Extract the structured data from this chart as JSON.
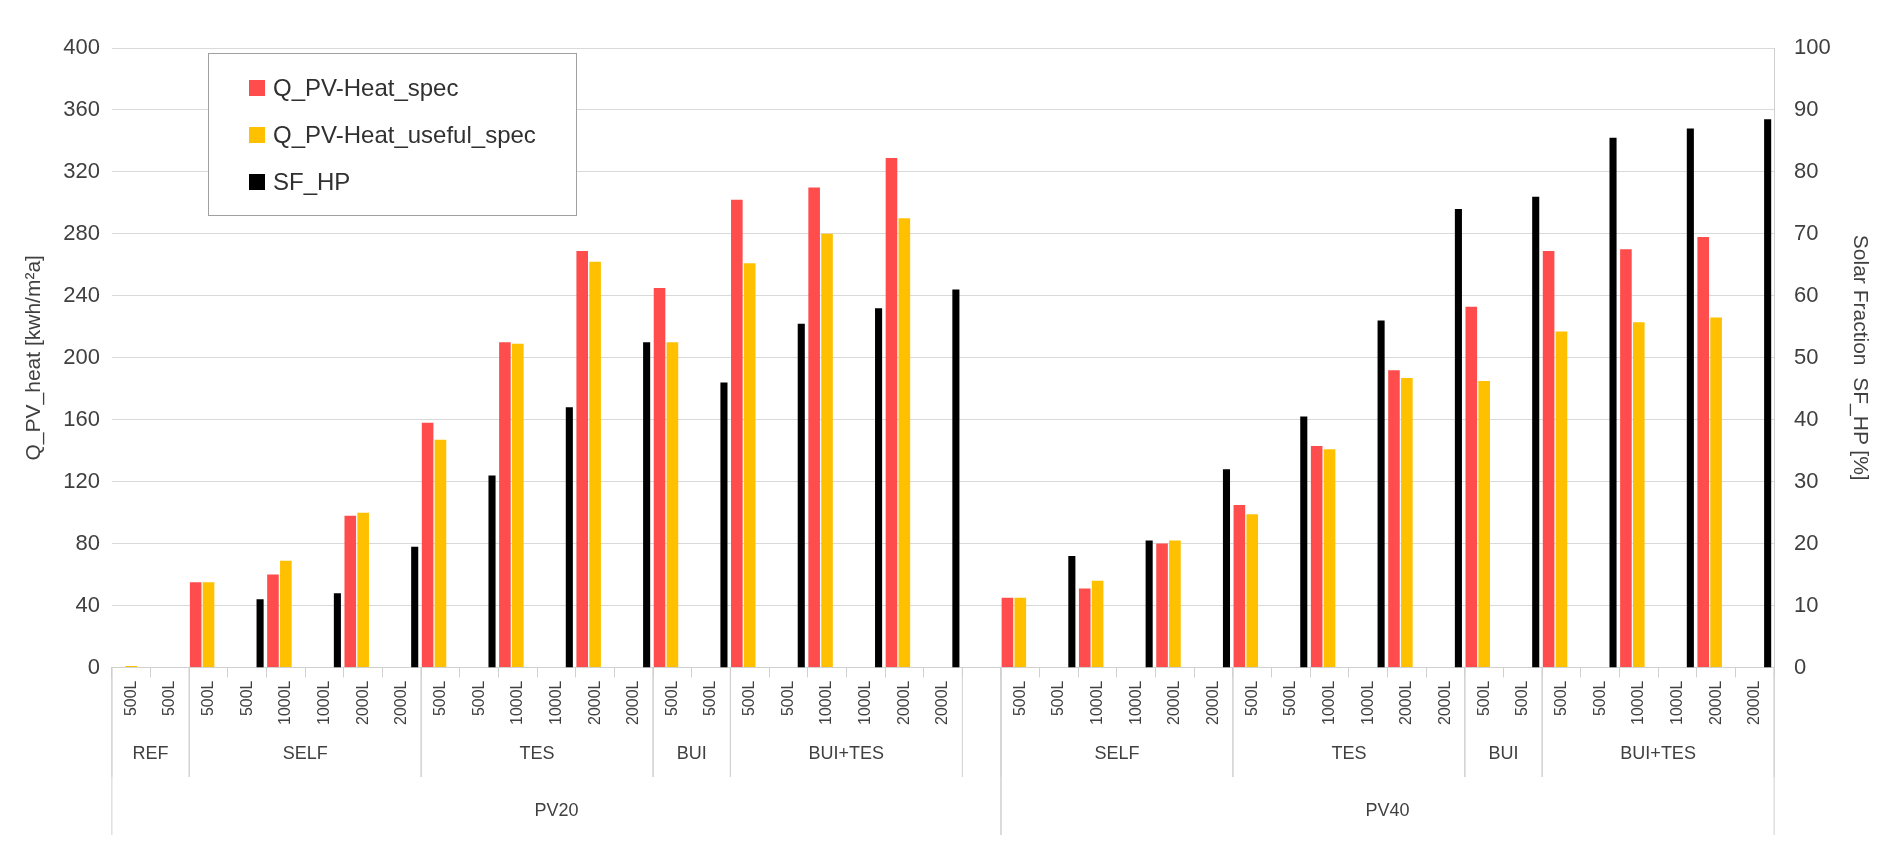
{
  "chart_data": {
    "type": "bar",
    "ylabel": "Q_PV_heat [kwh/m²a]",
    "y2label": "Solar Fraction  SF_HP [%]",
    "categories": [
      "500L",
      "500L",
      "500L",
      "500L",
      "1000L",
      "1000L",
      "2000L",
      "2000L",
      "500L",
      "500L",
      "1000L",
      "1000L",
      "2000L",
      "2000L",
      "500L",
      "500L",
      "500L",
      "500L",
      "1000L",
      "1000L",
      "2000L",
      "2000L",
      null,
      "500L",
      "500L",
      "1000L",
      "1000L",
      "2000L",
      "2000L",
      "500L",
      "500L",
      "1000L",
      "1000L",
      "2000L",
      "2000L",
      "500L",
      "500L",
      "500L",
      "500L",
      "1000L",
      "1000L",
      "2000L",
      "2000L"
    ],
    "series": [
      {
        "name": "Q_PV-Heat_spec",
        "color": "#ff4c4c",
        "values": [
          0,
          null,
          55,
          null,
          60,
          null,
          98,
          null,
          158,
          null,
          210,
          null,
          269,
          null,
          245,
          null,
          302,
          null,
          310,
          null,
          329,
          null,
          null,
          45,
          null,
          51,
          null,
          80,
          null,
          105,
          null,
          143,
          null,
          192,
          null,
          233,
          null,
          269,
          null,
          270,
          null,
          278,
          null
        ]
      },
      {
        "name": "Q_PV-Heat_useful_spec",
        "color": "#ffc000",
        "values": [
          1,
          null,
          55,
          null,
          69,
          null,
          100,
          null,
          147,
          null,
          209,
          null,
          262,
          null,
          210,
          null,
          261,
          null,
          280,
          null,
          290,
          null,
          null,
          45,
          null,
          56,
          null,
          82,
          null,
          99,
          null,
          141,
          null,
          187,
          null,
          185,
          null,
          217,
          null,
          223,
          null,
          226,
          null
        ]
      },
      {
        "name": "SF_HP",
        "color": "#000000",
        "axis": "y2",
        "values": [
          null,
          0,
          null,
          11,
          null,
          12,
          null,
          19.5,
          null,
          31,
          null,
          42,
          null,
          52.5,
          null,
          46,
          null,
          55.5,
          null,
          58,
          null,
          61,
          null,
          null,
          18,
          null,
          20.5,
          null,
          32,
          null,
          40.5,
          null,
          56,
          null,
          74,
          null,
          76,
          null,
          85.5,
          null,
          87,
          null,
          88.5
        ]
      }
    ],
    "ylim": [
      0,
      400
    ],
    "yticks": [
      0,
      40,
      80,
      120,
      160,
      200,
      240,
      280,
      320,
      360,
      400
    ],
    "y2lim": [
      0,
      100
    ],
    "y2ticks": [
      0,
      10,
      20,
      30,
      40,
      50,
      60,
      70,
      80,
      90,
      100
    ],
    "annotations": [
      "REF",
      "SELF",
      "TES",
      "BUI",
      "BUI+TES",
      "SELF",
      "TES",
      "BUI",
      "BUI+TES",
      "PV20",
      "PV40"
    ],
    "grid": "y",
    "legend": "top left"
  }
}
